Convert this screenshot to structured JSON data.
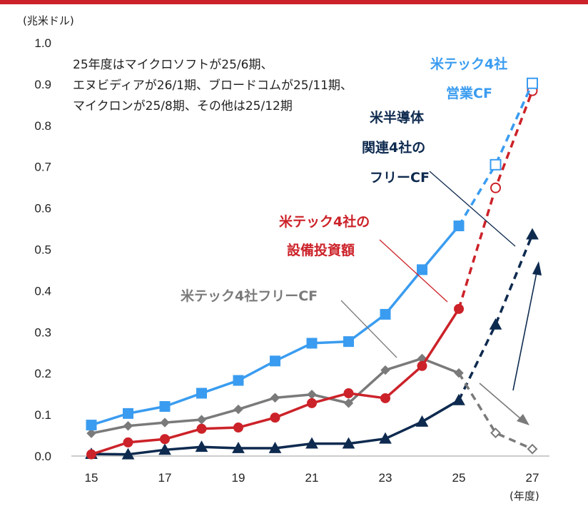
{
  "colors": {
    "blue": "#3a9cf0",
    "red": "#cc2229",
    "gray": "#7a7a7a",
    "navy": "#0e2a4f",
    "topbar": "#cc2229",
    "axis": "#999999"
  },
  "chart_data": {
    "type": "line",
    "y_unit_label": "(兆米ドル)",
    "x_unit_label": "(年度)",
    "ylim": [
      0,
      1.0
    ],
    "y_ticks": [
      "0.0",
      "0.1",
      "0.2",
      "0.3",
      "0.4",
      "0.5",
      "0.6",
      "0.7",
      "0.8",
      "0.9",
      "1.0"
    ],
    "x_ticks": [
      "15",
      "17",
      "19",
      "21",
      "23",
      "25",
      "27"
    ],
    "grid": false,
    "x": [
      15,
      16,
      17,
      18,
      19,
      20,
      21,
      22,
      23,
      24,
      25,
      26,
      27
    ],
    "note": [
      "25年度はマイクロソフトが25/6期、",
      "エヌビディアが26/1期、ブロードコムが25/11期、",
      "マイクロンが25/8期、その他は25/12期"
    ],
    "series": [
      {
        "name": "米テック4社営業CF",
        "label_lines": [
          "米テック4社",
          "営業CF"
        ],
        "color": "blue",
        "marker": "square",
        "actual_x": [
          15,
          16,
          17,
          18,
          19,
          20,
          21,
          22,
          23,
          24,
          25
        ],
        "actual_y": [
          0.075,
          0.103,
          0.12,
          0.152,
          0.183,
          0.23,
          0.273,
          0.277,
          0.343,
          0.451,
          0.557
        ],
        "forecast_x": [
          26,
          27
        ],
        "forecast_y": [
          0.705,
          0.902
        ]
      },
      {
        "name": "米テック4社の設備投資額",
        "label_lines": [
          "米テック4社の",
          "設備投資額"
        ],
        "color": "red",
        "marker": "circle",
        "actual_x": [
          15,
          16,
          17,
          18,
          19,
          20,
          21,
          22,
          23,
          24,
          25
        ],
        "actual_y": [
          0.004,
          0.033,
          0.041,
          0.066,
          0.069,
          0.093,
          0.128,
          0.152,
          0.14,
          0.218,
          0.356
        ],
        "forecast_x": [
          26,
          27
        ],
        "forecast_y": [
          0.649,
          0.884
        ]
      },
      {
        "name": "米テック4社フリーCF",
        "label_lines": [
          "米テック4社フリーCF"
        ],
        "color": "gray",
        "marker": "diamond",
        "actual_x": [
          15,
          16,
          17,
          18,
          19,
          20,
          21,
          22,
          23,
          24,
          25
        ],
        "actual_y": [
          0.055,
          0.073,
          0.081,
          0.088,
          0.113,
          0.141,
          0.149,
          0.128,
          0.208,
          0.236,
          0.201
        ],
        "forecast_x": [
          26,
          27
        ],
        "forecast_y": [
          0.056,
          0.017
        ]
      },
      {
        "name": "米半導体関連4社のフリーCF",
        "label_lines": [
          "米半導体",
          "関連4社の",
          "フリーCF"
        ],
        "color": "navy",
        "marker": "triangle",
        "actual_x": [
          15,
          16,
          17,
          18,
          19,
          20,
          21,
          22,
          23,
          24,
          25
        ],
        "actual_y": [
          0.005,
          0.004,
          0.015,
          0.022,
          0.019,
          0.019,
          0.03,
          0.03,
          0.042,
          0.083,
          0.135
        ],
        "forecast_x": [
          26,
          27
        ],
        "forecast_y": [
          0.318,
          0.536
        ]
      }
    ]
  }
}
